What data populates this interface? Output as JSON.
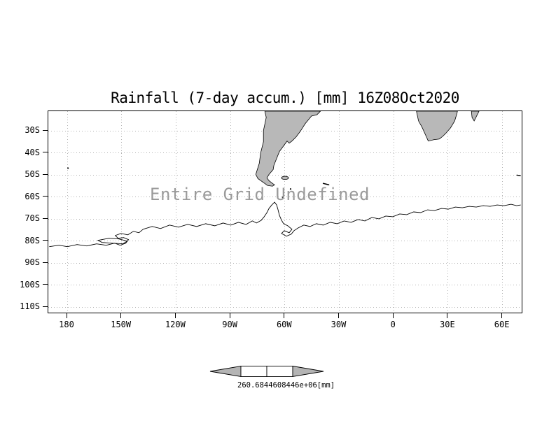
{
  "title": "Rainfall (7-day accum.) [mm] 16Z08Oct2020",
  "plot": {
    "annotation": "Entire Grid Undefined",
    "lat_ticks": [
      "30S",
      "40S",
      "50S",
      "60S",
      "70S",
      "80S",
      "90S",
      "100S",
      "110S"
    ],
    "lon_ticks": [
      "180",
      "150W",
      "120W",
      "90W",
      "60W",
      "30W",
      "0",
      "30E",
      "60E"
    ]
  },
  "colorbar": {
    "label": "260.6844608446e+06[mm]"
  },
  "colors": {
    "land_fill": "#b8b8b8",
    "coastline": "#000000",
    "gridline": "#b3b3b3",
    "annotation_text": "#9a9a9a",
    "background": "#ffffff"
  },
  "chart_data": {
    "type": "heatmap",
    "title": "Rainfall (7-day accum.) [mm] 16Z08Oct2020",
    "x_tick_labels": [
      "180",
      "150W",
      "120W",
      "90W",
      "60W",
      "30W",
      "0",
      "30E",
      "60E"
    ],
    "y_tick_labels": [
      "30S",
      "40S",
      "50S",
      "60S",
      "70S",
      "80S",
      "90S",
      "100S",
      "110S"
    ],
    "series": [],
    "status": "Entire Grid Undefined",
    "annotation": "Entire Grid Undefined",
    "colorbar_label": "260.6844608446e+06[mm]",
    "grid": true,
    "legend": false
  }
}
